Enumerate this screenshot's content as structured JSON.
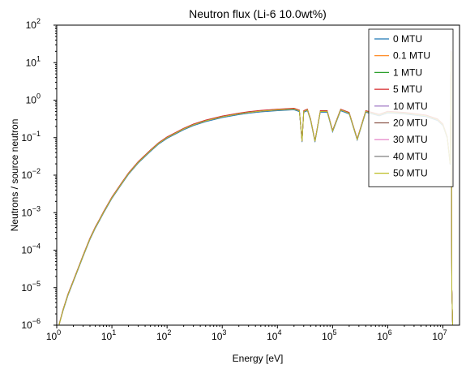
{
  "chart_data": {
    "type": "line",
    "title": "Neutron flux (Li-6 10.0wt%)",
    "xlabel": "Energy [eV]",
    "ylabel": "Neutrons / source neutron",
    "x_scale": "log",
    "y_scale": "log",
    "xlim": [
      1,
      20000000
    ],
    "ylim": [
      1e-06,
      100
    ],
    "grid": false,
    "legend_position": "top-right",
    "x_ticks": [
      {
        "value": 1,
        "base": "10",
        "exp": "0"
      },
      {
        "value": 10,
        "base": "10",
        "exp": "1"
      },
      {
        "value": 100,
        "base": "10",
        "exp": "2"
      },
      {
        "value": 1000,
        "base": "10",
        "exp": "3"
      },
      {
        "value": 10000,
        "base": "10",
        "exp": "4"
      },
      {
        "value": 100000,
        "base": "10",
        "exp": "5"
      },
      {
        "value": 1000000,
        "base": "10",
        "exp": "6"
      },
      {
        "value": 10000000,
        "base": "10",
        "exp": "7"
      }
    ],
    "y_ticks": [
      {
        "value": 1e-06,
        "base": "10",
        "exp": "−6"
      },
      {
        "value": 1e-05,
        "base": "10",
        "exp": "−5"
      },
      {
        "value": 0.0001,
        "base": "10",
        "exp": "−4"
      },
      {
        "value": 0.001,
        "base": "10",
        "exp": "−3"
      },
      {
        "value": 0.01,
        "base": "10",
        "exp": "−2"
      },
      {
        "value": 0.1,
        "base": "10",
        "exp": "−1"
      },
      {
        "value": 1,
        "base": "10",
        "exp": "0"
      },
      {
        "value": 10,
        "base": "10",
        "exp": "1"
      },
      {
        "value": 100,
        "base": "10",
        "exp": "2"
      }
    ],
    "x": [
      1.1,
      1.3,
      1.6,
      2,
      2.5,
      3,
      4,
      5,
      6,
      7,
      10,
      15,
      20,
      30,
      50,
      70,
      100,
      200,
      300,
      500,
      1000,
      2000,
      3000,
      5000,
      10000,
      20000,
      25000,
      28000,
      30000,
      35000,
      40000,
      48000,
      60000,
      80000,
      100000,
      140000,
      200000,
      280000,
      400000,
      700000,
      1000000,
      2000000,
      3000000,
      5000000,
      8000000,
      10000000,
      12000000,
      13500000,
      14100000,
      14500000,
      15000000,
      20000000
    ],
    "base_values": [
      1e-06,
      2.5e-06,
      6.5e-06,
      1.5e-05,
      3.5e-05,
      7e-05,
      0.0002,
      0.0004,
      0.00065,
      0.001,
      0.0025,
      0.006,
      0.011,
      0.022,
      0.045,
      0.07,
      0.1,
      0.17,
      0.22,
      0.28,
      0.36,
      0.43,
      0.47,
      0.51,
      0.55,
      0.58,
      0.52,
      0.08,
      0.5,
      0.55,
      0.3,
      0.08,
      0.5,
      0.5,
      0.15,
      0.55,
      0.45,
      0.09,
      0.5,
      0.4,
      0.48,
      0.45,
      0.42,
      0.38,
      0.3,
      0.22,
      0.1,
      0.02,
      20,
      1e-05,
      5e-07,
      1e-07
    ],
    "series": [
      {
        "name": "0 MTU",
        "color": "#1f77b4",
        "scale": 0.95
      },
      {
        "name": "0.1 MTU",
        "color": "#ff7f0e",
        "scale": 1.0
      },
      {
        "name": "1 MTU",
        "color": "#2ca02c",
        "scale": 1.03
      },
      {
        "name": "5 MTU",
        "color": "#d62728",
        "scale": 1.05
      },
      {
        "name": "10 MTU",
        "color": "#9467bd",
        "scale": 1.0
      },
      {
        "name": "20 MTU",
        "color": "#8c564b",
        "scale": 1.0
      },
      {
        "name": "30 MTU",
        "color": "#e377c2",
        "scale": 1.0
      },
      {
        "name": "40 MTU",
        "color": "#7f7f7f",
        "scale": 1.0
      },
      {
        "name": "50 MTU",
        "color": "#bcbd22",
        "scale": 1.0
      }
    ]
  }
}
